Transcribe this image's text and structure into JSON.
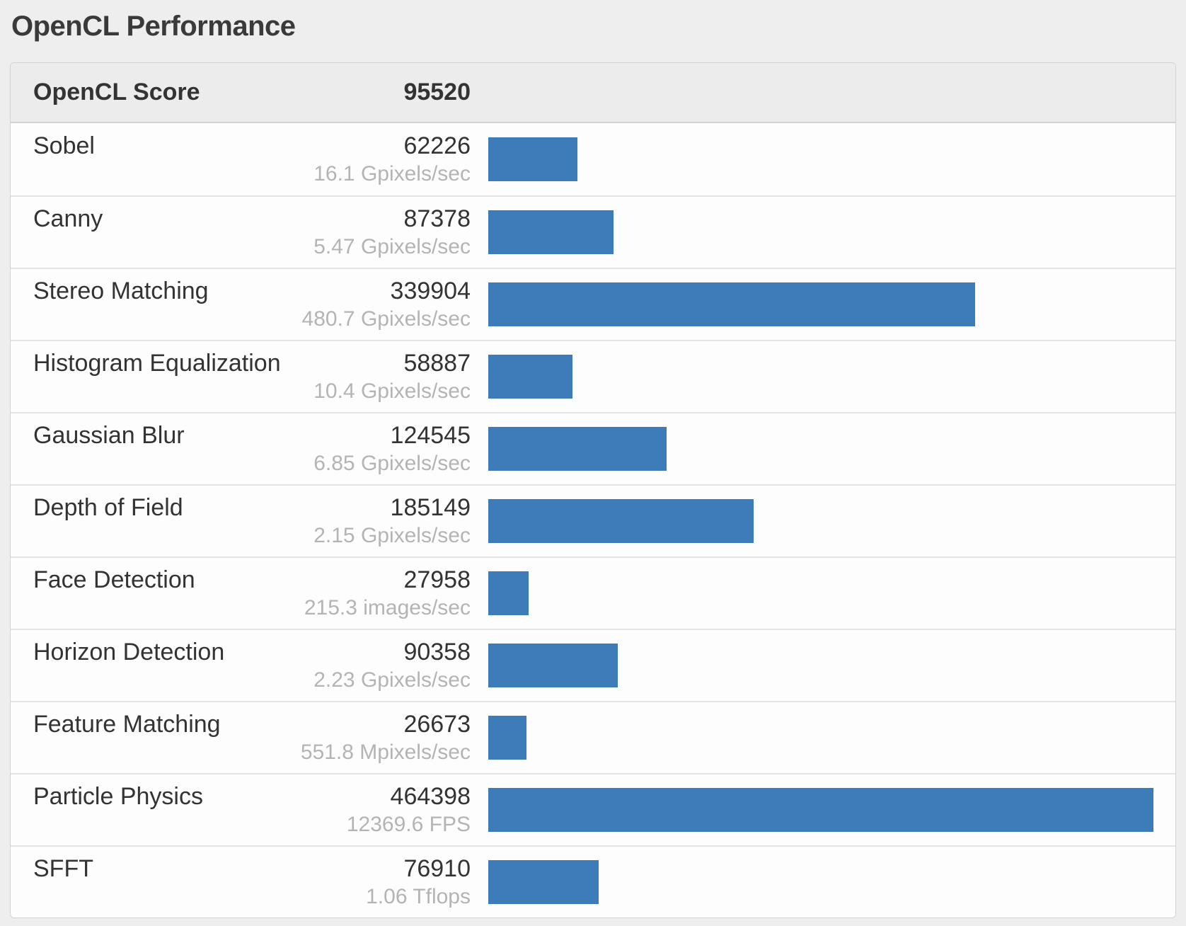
{
  "page": {
    "title": "OpenCL Performance"
  },
  "colors": {
    "bar": "#3d7cb9",
    "page_background": "#eeeeee",
    "card_background": "#fdfdfd",
    "header_background": "#ececec",
    "text_dark": "#333333",
    "text_muted": "#b4b4b4"
  },
  "table": {
    "header": {
      "label": "OpenCL Score",
      "value": "95520"
    },
    "rows": [
      {
        "name": "Sobel",
        "score": "62226",
        "rate": "16.1 Gpixels/sec",
        "pct": 13.4
      },
      {
        "name": "Canny",
        "score": "87378",
        "rate": "5.47 Gpixels/sec",
        "pct": 18.82
      },
      {
        "name": "Stereo Matching",
        "score": "339904",
        "rate": "480.7 Gpixels/sec",
        "pct": 73.19
      },
      {
        "name": "Histogram Equalization",
        "score": "58887",
        "rate": "10.4 Gpixels/sec",
        "pct": 12.68
      },
      {
        "name": "Gaussian Blur",
        "score": "124545",
        "rate": "6.85 Gpixels/sec",
        "pct": 26.82
      },
      {
        "name": "Depth of Field",
        "score": "185149",
        "rate": "2.15 Gpixels/sec",
        "pct": 39.87
      },
      {
        "name": "Face Detection",
        "score": "27958",
        "rate": "215.3 images/sec",
        "pct": 6.02
      },
      {
        "name": "Horizon Detection",
        "score": "90358",
        "rate": "2.23 Gpixels/sec",
        "pct": 19.46
      },
      {
        "name": "Feature Matching",
        "score": "26673",
        "rate": "551.8 Mpixels/sec",
        "pct": 5.74
      },
      {
        "name": "Particle Physics",
        "score": "464398",
        "rate": "12369.6 FPS",
        "pct": 100.0
      },
      {
        "name": "SFFT",
        "score": "76910",
        "rate": "1.06 Tflops",
        "pct": 16.56
      }
    ]
  },
  "chart_data": {
    "type": "bar",
    "orientation": "horizontal",
    "title": "OpenCL Performance",
    "total_label": "OpenCL Score",
    "total_value": 95520,
    "categories": [
      "Sobel",
      "Canny",
      "Stereo Matching",
      "Histogram Equalization",
      "Gaussian Blur",
      "Depth of Field",
      "Face Detection",
      "Horizon Detection",
      "Feature Matching",
      "Particle Physics",
      "SFFT"
    ],
    "values": [
      62226,
      87378,
      339904,
      58887,
      124545,
      185149,
      27958,
      90358,
      26673,
      464398,
      76910
    ],
    "rate_labels": [
      "16.1 Gpixels/sec",
      "5.47 Gpixels/sec",
      "480.7 Gpixels/sec",
      "10.4 Gpixels/sec",
      "6.85 Gpixels/sec",
      "2.15 Gpixels/sec",
      "215.3 images/sec",
      "2.23 Gpixels/sec",
      "551.8 Mpixels/sec",
      "12369.6 FPS",
      "1.06 Tflops"
    ],
    "xlim": [
      0,
      464398
    ],
    "grid": false,
    "legend": false,
    "bar_color": "#3d7cb9"
  }
}
